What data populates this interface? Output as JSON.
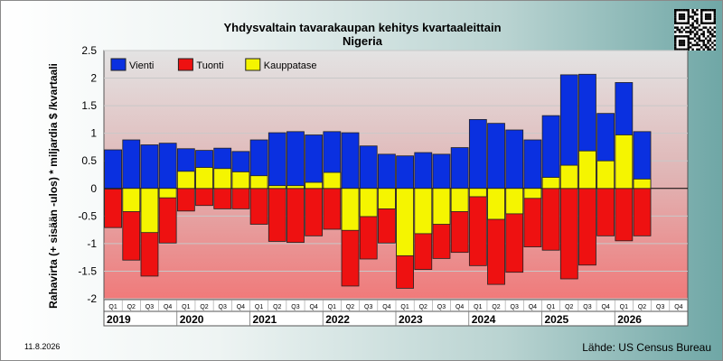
{
  "title": "Yhdysvaltain tavarakaupan kehitys kvartaaleittain",
  "subtitle": "Nigeria",
  "date": "11.8.2026",
  "source": "Lähde: US Census Bureau",
  "chart_data": {
    "type": "bar",
    "ylabel": "Rahavirta (+ sisään -ulos) * miljardia $ /kvartaali",
    "ylim": [
      -2,
      2.5
    ],
    "yticks": [
      "2.5",
      "2",
      "1.5",
      "1",
      "0.5",
      "0",
      "-0.5",
      "-1",
      "-1.5",
      "-2"
    ],
    "ytick_values": [
      2.5,
      2,
      1.5,
      1,
      0.5,
      0,
      -0.5,
      -1,
      -1.5,
      -2
    ],
    "grid": true,
    "legend_position": "top-left",
    "quarters": [
      "Q1",
      "Q2",
      "Q3",
      "Q4",
      "Q1",
      "Q2",
      "Q3",
      "Q4",
      "Q1",
      "Q2",
      "Q3",
      "Q4",
      "Q1",
      "Q2",
      "Q3",
      "Q4",
      "Q1",
      "Q2",
      "Q3",
      "Q4",
      "Q1",
      "Q2",
      "Q3",
      "Q4",
      "Q1",
      "Q2",
      "Q3",
      "Q4",
      "Q1",
      "Q2",
      "Q3",
      "Q4"
    ],
    "years": [
      "2019",
      "2020",
      "2021",
      "2022",
      "2023",
      "2024",
      "2025",
      "2026"
    ],
    "series": [
      {
        "name": "Vienti",
        "color": "#0a30e0",
        "values": [
          0.7,
          0.88,
          0.79,
          0.82,
          0.72,
          0.69,
          0.73,
          0.67,
          0.88,
          1.01,
          1.03,
          0.97,
          1.03,
          1.01,
          0.77,
          0.62,
          0.59,
          0.65,
          0.62,
          0.74,
          1.25,
          1.18,
          1.06,
          0.88,
          1.32,
          2.06,
          2.07,
          1.36,
          1.92,
          1.03,
          null,
          null
        ]
      },
      {
        "name": "Tuonti",
        "color": "#ee1111",
        "values": [
          -0.71,
          -1.3,
          -1.59,
          -0.99,
          -0.41,
          -0.31,
          -0.37,
          -0.37,
          -0.65,
          -0.96,
          -0.98,
          -0.86,
          -0.74,
          -1.77,
          -1.28,
          -0.99,
          -1.81,
          -1.47,
          -1.27,
          -1.16,
          -1.4,
          -1.74,
          -1.52,
          -1.06,
          -1.12,
          -1.64,
          -1.39,
          -0.86,
          -0.95,
          -0.86,
          null,
          null
        ]
      },
      {
        "name": "Kauppatase",
        "color": "#f5f500",
        "values": [
          -0.01,
          -0.42,
          -0.8,
          -0.17,
          0.31,
          0.38,
          0.36,
          0.3,
          0.23,
          0.05,
          0.05,
          0.11,
          0.29,
          -0.76,
          -0.51,
          -0.37,
          -1.22,
          -0.82,
          -0.65,
          -0.42,
          -0.15,
          -0.56,
          -0.46,
          -0.18,
          0.2,
          0.42,
          0.68,
          0.5,
          0.97,
          0.17,
          null,
          null
        ]
      }
    ]
  }
}
